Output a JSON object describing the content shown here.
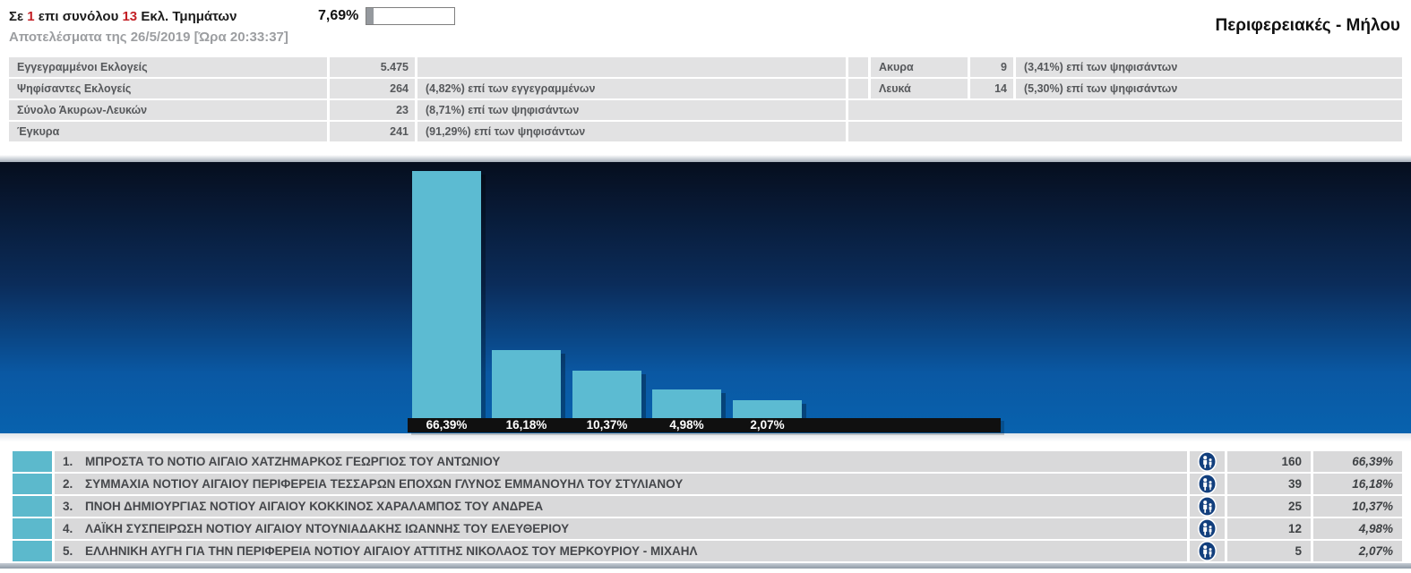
{
  "header": {
    "stations_prefix": "Σε ",
    "stations_current": "1",
    "stations_mid": " επι συνόλου ",
    "stations_total": "13",
    "stations_suffix": " Εκλ. Τμημάτων",
    "progress_percent_label": "7,69%",
    "progress_value": 7.69,
    "results_line": "Αποτελέσματα της 26/5/2019 [Ώρα 20:33:37]",
    "region_title": "Περιφερειακές - Μήλου",
    "accent_red": "#c32026"
  },
  "summary": {
    "rows": [
      {
        "label": "Εγγεγραμμένοι Εκλογείς",
        "value": "5.475",
        "note": ""
      },
      {
        "label": "Ψηφίσαντες Εκλογείς",
        "value": "264",
        "note": "(4,82%) επί των εγγεγραμμένων"
      },
      {
        "label": "Σύνολο Άκυρων-Λευκών",
        "value": "23",
        "note": "(8,71%) επί των ψηφισάντων"
      },
      {
        "label": "Έγκυρα",
        "value": "241",
        "note": "(91,29%) επί των ψηφισάντων"
      }
    ],
    "right_rows": [
      {
        "label": "Ακυρα",
        "value": "9",
        "note": "(3,41%) επί των ψηφισάντων"
      },
      {
        "label": "Λευκά",
        "value": "14",
        "note": "(5,30%) επί των ψηφισάντων"
      }
    ]
  },
  "chart_data": {
    "type": "bar",
    "categories": [
      "ΜΠΡΟΣΤΑ ΤΟ ΝΟΤΙΟ ΑΙΓΑΙΟ ΧΑΤΖΗΜΑΡΚΟΣ ΓΕΩΡΓΙΟΣ ΤΟΥ ΑΝΤΩΝΙΟΥ",
      "ΣΥΜΜΑΧΙΑ ΝΟΤΙΟΥ ΑΙΓΑΙΟΥ ΠΕΡΙΦΕΡΕΙΑ ΤΕΣΣΑΡΩΝ ΕΠΟΧΩΝ ΓΛΥΝΟΣ ΕΜΜΑΝΟΥΗΛ ΤΟΥ ΣΤΥΛΙΑΝΟΥ",
      "ΠΝΟΗ ΔΗΜΙΟΥΡΓΙΑΣ ΝΟΤΙΟΥ ΑΙΓΑΙΟΥ ΚΟΚΚΙΝΟΣ ΧΑΡΑΛΑΜΠΟΣ ΤΟΥ ΑΝΔΡΕΑ",
      "ΛΑΪΚΗ ΣΥΣΠΕΙΡΩΣΗ ΝΟΤΙΟΥ ΑΙΓΑΙΟΥ ΝΤΟΥΝΙΑΔΑΚΗΣ ΙΩΑΝΝΗΣ ΤΟΥ ΕΛΕΥΘΕΡΙΟΥ",
      "ΕΛΛΗΝΙΚΗ ΑΥΓΗ ΓΙΑ ΤΗΝ ΠΕΡΙΦΕΡΕΙΑ ΝΟΤΙΟΥ ΑΙΓΑΙΟΥ ΑΤΤΙΤΗΣ ΝΙΚΟΛΑΟΣ ΤΟΥ ΜΕΡΚΟΥΡΙΟΥ - ΜΙΧΑΗΛ"
    ],
    "values": [
      66.39,
      16.18,
      10.37,
      4.98,
      2.07
    ],
    "value_labels": [
      "66,39%",
      "16,18%",
      "10,37%",
      "4,98%",
      "2,07%"
    ],
    "votes": [
      160,
      39,
      25,
      12,
      5
    ],
    "title": "",
    "xlabel": "",
    "ylabel": "",
    "ylim": [
      0,
      70
    ],
    "grid": false,
    "legend": false,
    "bar_color": "#5cbbd2",
    "background": "dark-navy-to-blue-gradient",
    "label_strip_color": "#101010"
  },
  "results": {
    "swatch_color": "#5cb9cc",
    "rows": [
      {
        "rank": "1.",
        "name": "ΜΠΡΟΣΤΑ ΤΟ ΝΟΤΙΟ ΑΙΓΑΙΟ ΧΑΤΖΗΜΑΡΚΟΣ ΓΕΩΡΓΙΟΣ ΤΟΥ ΑΝΤΩΝΙΟΥ",
        "votes": "160",
        "percent": "66,39%"
      },
      {
        "rank": "2.",
        "name": "ΣΥΜΜΑΧΙΑ ΝΟΤΙΟΥ ΑΙΓΑΙΟΥ ΠΕΡΙΦΕΡΕΙΑ ΤΕΣΣΑΡΩΝ ΕΠΟΧΩΝ ΓΛΥΝΟΣ ΕΜΜΑΝΟΥΗΛ ΤΟΥ ΣΤΥΛΙΑΝΟΥ",
        "votes": "39",
        "percent": "16,18%"
      },
      {
        "rank": "3.",
        "name": "ΠΝΟΗ ΔΗΜΙΟΥΡΓΙΑΣ ΝΟΤΙΟΥ ΑΙΓΑΙΟΥ ΚΟΚΚΙΝΟΣ ΧΑΡΑΛΑΜΠΟΣ ΤΟΥ ΑΝΔΡΕΑ",
        "votes": "25",
        "percent": "10,37%"
      },
      {
        "rank": "4.",
        "name": "ΛΑΪΚΗ ΣΥΣΠΕΙΡΩΣΗ ΝΟΤΙΟΥ ΑΙΓΑΙΟΥ ΝΤΟΥΝΙΑΔΑΚΗΣ ΙΩΑΝΝΗΣ ΤΟΥ ΕΛΕΥΘΕΡΙΟΥ",
        "votes": "12",
        "percent": "4,98%"
      },
      {
        "rank": "5.",
        "name": "ΕΛΛΗΝΙΚΗ ΑΥΓΗ ΓΙΑ ΤΗΝ ΠΕΡΙΦΕΡΕΙΑ ΝΟΤΙΟΥ ΑΙΓΑΙΟΥ ΑΤΤΙΤΗΣ ΝΙΚΟΛΑΟΣ ΤΟΥ ΜΕΡΚΟΥΡΙΟΥ - ΜΙΧΑΗΛ",
        "votes": "5",
        "percent": "2,07%"
      }
    ],
    "person_icon_label": "candidates-icon"
  }
}
